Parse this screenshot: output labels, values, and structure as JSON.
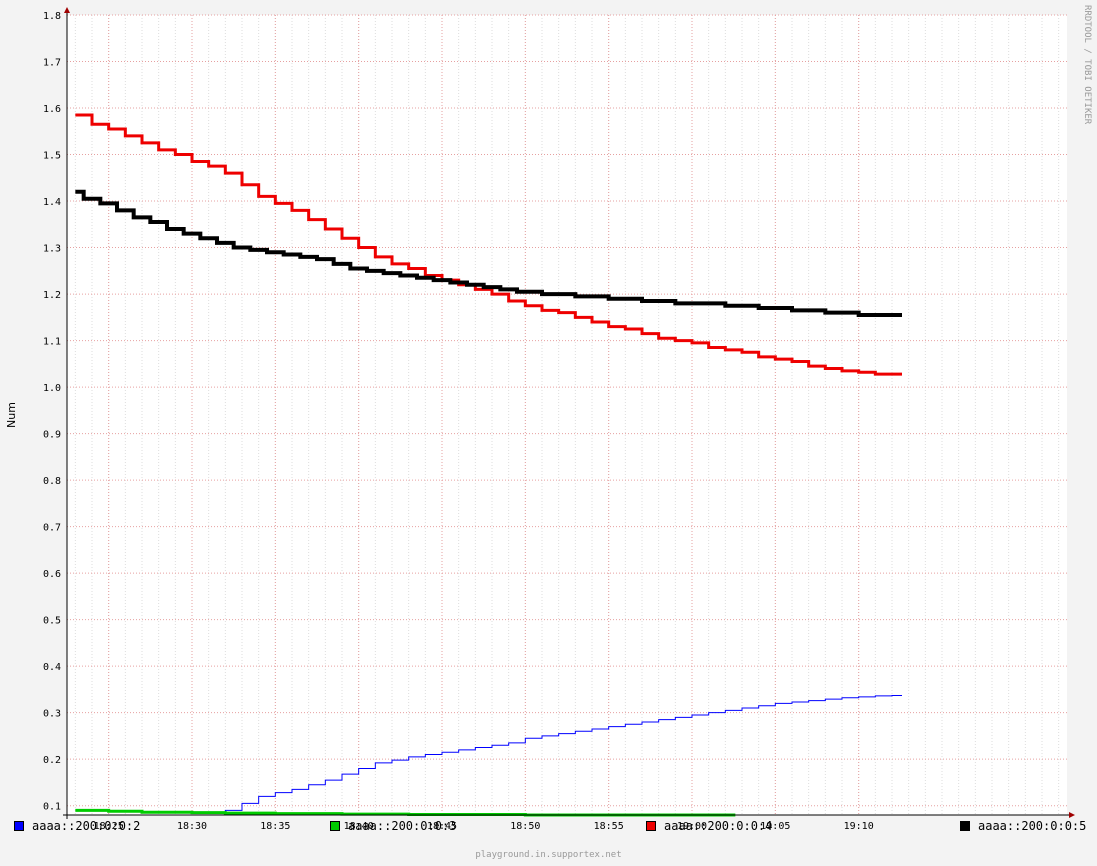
{
  "chart_data": {
    "type": "line",
    "title": "",
    "ylabel": "Num",
    "xlabel": "",
    "ylim": [
      0.08,
      1.8
    ],
    "y_ticks": [
      "0.1",
      "0.2",
      "0.3",
      "0.4",
      "0.5",
      "0.6",
      "0.7",
      "0.8",
      "0.9",
      "1.0",
      "1.1",
      "1.2",
      "1.3",
      "1.4",
      "1.5",
      "1.6",
      "1.7",
      "1.8"
    ],
    "x_ticks": [
      "18:25",
      "18:30",
      "18:35",
      "18:40",
      "18:45",
      "18:50",
      "18:55",
      "19:00",
      "19:05",
      "19:10"
    ],
    "grid": true,
    "series": [
      {
        "name": "aaaa::200:0:0:2",
        "color": "#0000ff",
        "values": [
          {
            "t": "18:23",
            "v": null
          },
          {
            "t": "18:31",
            "v": 0.085
          },
          {
            "t": "18:32",
            "v": 0.09
          },
          {
            "t": "18:33",
            "v": 0.105
          },
          {
            "t": "18:34",
            "v": 0.12
          },
          {
            "t": "18:35",
            "v": 0.128
          },
          {
            "t": "18:36",
            "v": 0.135
          },
          {
            "t": "18:37",
            "v": 0.145
          },
          {
            "t": "18:38",
            "v": 0.155
          },
          {
            "t": "18:39",
            "v": 0.168
          },
          {
            "t": "18:40",
            "v": 0.18
          },
          {
            "t": "18:41",
            "v": 0.192
          },
          {
            "t": "18:42",
            "v": 0.198
          },
          {
            "t": "18:43",
            "v": 0.205
          },
          {
            "t": "18:44",
            "v": 0.21
          },
          {
            "t": "18:45",
            "v": 0.215
          },
          {
            "t": "18:46",
            "v": 0.22
          },
          {
            "t": "18:47",
            "v": 0.225
          },
          {
            "t": "18:48",
            "v": 0.23
          },
          {
            "t": "18:49",
            "v": 0.235
          },
          {
            "t": "18:50",
            "v": 0.245
          },
          {
            "t": "18:51",
            "v": 0.25
          },
          {
            "t": "18:52",
            "v": 0.255
          },
          {
            "t": "18:53",
            "v": 0.26
          },
          {
            "t": "18:54",
            "v": 0.265
          },
          {
            "t": "18:55",
            "v": 0.27
          },
          {
            "t": "18:56",
            "v": 0.275
          },
          {
            "t": "18:57",
            "v": 0.28
          },
          {
            "t": "18:58",
            "v": 0.285
          },
          {
            "t": "18:59",
            "v": 0.29
          },
          {
            "t": "19:00",
            "v": 0.295
          },
          {
            "t": "19:01",
            "v": 0.3
          },
          {
            "t": "19:02",
            "v": 0.305
          },
          {
            "t": "19:03",
            "v": 0.31
          },
          {
            "t": "19:04",
            "v": 0.315
          },
          {
            "t": "19:05",
            "v": 0.32
          },
          {
            "t": "19:06",
            "v": 0.323
          },
          {
            "t": "19:07",
            "v": 0.326
          },
          {
            "t": "19:08",
            "v": 0.329
          },
          {
            "t": "19:09",
            "v": 0.332
          },
          {
            "t": "19:10",
            "v": 0.334
          },
          {
            "t": "19:11",
            "v": 0.336
          },
          {
            "t": "19:12",
            "v": 0.337
          }
        ]
      },
      {
        "name": "aaaa::200:0:0:3",
        "color": "#00cc00",
        "values": [
          {
            "t": "18:23",
            "v": 0.09
          },
          {
            "t": "18:25",
            "v": 0.088
          },
          {
            "t": "18:27",
            "v": 0.086
          },
          {
            "t": "18:30",
            "v": 0.085
          },
          {
            "t": "18:32",
            "v": 0.084
          },
          {
            "t": "18:35",
            "v": 0.083
          },
          {
            "t": "18:39",
            "v": 0.082
          },
          {
            "t": "18:43",
            "v": 0.081
          },
          {
            "t": "18:50",
            "v": 0.08
          },
          {
            "t": "18:55",
            "v": 0.08
          },
          {
            "t": "19:02",
            "v": 0.08
          }
        ]
      },
      {
        "name": "aaaa::200:0:0:4",
        "color": "#ee0000",
        "values": [
          {
            "t": "18:23",
            "v": 1.585
          },
          {
            "t": "18:24",
            "v": 1.565
          },
          {
            "t": "18:25",
            "v": 1.555
          },
          {
            "t": "18:26",
            "v": 1.54
          },
          {
            "t": "18:27",
            "v": 1.525
          },
          {
            "t": "18:28",
            "v": 1.51
          },
          {
            "t": "18:29",
            "v": 1.5
          },
          {
            "t": "18:30",
            "v": 1.485
          },
          {
            "t": "18:31",
            "v": 1.475
          },
          {
            "t": "18:32",
            "v": 1.46
          },
          {
            "t": "18:33",
            "v": 1.435
          },
          {
            "t": "18:34",
            "v": 1.41
          },
          {
            "t": "18:35",
            "v": 1.395
          },
          {
            "t": "18:36",
            "v": 1.38
          },
          {
            "t": "18:37",
            "v": 1.36
          },
          {
            "t": "18:38",
            "v": 1.34
          },
          {
            "t": "18:39",
            "v": 1.32
          },
          {
            "t": "18:40",
            "v": 1.3
          },
          {
            "t": "18:41",
            "v": 1.28
          },
          {
            "t": "18:42",
            "v": 1.265
          },
          {
            "t": "18:43",
            "v": 1.255
          },
          {
            "t": "18:44",
            "v": 1.24
          },
          {
            "t": "18:45",
            "v": 1.23
          },
          {
            "t": "18:46",
            "v": 1.22
          },
          {
            "t": "18:47",
            "v": 1.21
          },
          {
            "t": "18:48",
            "v": 1.2
          },
          {
            "t": "18:49",
            "v": 1.185
          },
          {
            "t": "18:50",
            "v": 1.175
          },
          {
            "t": "18:51",
            "v": 1.165
          },
          {
            "t": "18:52",
            "v": 1.16
          },
          {
            "t": "18:53",
            "v": 1.15
          },
          {
            "t": "18:54",
            "v": 1.14
          },
          {
            "t": "18:55",
            "v": 1.13
          },
          {
            "t": "18:56",
            "v": 1.125
          },
          {
            "t": "18:57",
            "v": 1.115
          },
          {
            "t": "18:58",
            "v": 1.105
          },
          {
            "t": "18:59",
            "v": 1.1
          },
          {
            "t": "19:00",
            "v": 1.095
          },
          {
            "t": "19:01",
            "v": 1.085
          },
          {
            "t": "19:02",
            "v": 1.08
          },
          {
            "t": "19:03",
            "v": 1.075
          },
          {
            "t": "19:04",
            "v": 1.065
          },
          {
            "t": "19:05",
            "v": 1.06
          },
          {
            "t": "19:06",
            "v": 1.055
          },
          {
            "t": "19:07",
            "v": 1.045
          },
          {
            "t": "19:08",
            "v": 1.04
          },
          {
            "t": "19:09",
            "v": 1.035
          },
          {
            "t": "19:10",
            "v": 1.032
          },
          {
            "t": "19:11",
            "v": 1.028
          },
          {
            "t": "19:12",
            "v": 1.028
          }
        ]
      },
      {
        "name": "aaaa::200:0:0:5",
        "color": "#000000",
        "values": [
          {
            "t": "18:23",
            "v": 1.42
          },
          {
            "t": "18:23.5",
            "v": 1.405
          },
          {
            "t": "18:24.5",
            "v": 1.395
          },
          {
            "t": "18:25.5",
            "v": 1.38
          },
          {
            "t": "18:26.5",
            "v": 1.365
          },
          {
            "t": "18:27.5",
            "v": 1.355
          },
          {
            "t": "18:28.5",
            "v": 1.34
          },
          {
            "t": "18:29.5",
            "v": 1.33
          },
          {
            "t": "18:30.5",
            "v": 1.32
          },
          {
            "t": "18:31.5",
            "v": 1.31
          },
          {
            "t": "18:32.5",
            "v": 1.3
          },
          {
            "t": "18:33.5",
            "v": 1.295
          },
          {
            "t": "18:34.5",
            "v": 1.29
          },
          {
            "t": "18:35.5",
            "v": 1.285
          },
          {
            "t": "18:36.5",
            "v": 1.28
          },
          {
            "t": "18:37.5",
            "v": 1.275
          },
          {
            "t": "18:38.5",
            "v": 1.265
          },
          {
            "t": "18:39.5",
            "v": 1.255
          },
          {
            "t": "18:40.5",
            "v": 1.25
          },
          {
            "t": "18:41.5",
            "v": 1.245
          },
          {
            "t": "18:42.5",
            "v": 1.24
          },
          {
            "t": "18:43.5",
            "v": 1.235
          },
          {
            "t": "18:44.5",
            "v": 1.23
          },
          {
            "t": "18:45.5",
            "v": 1.225
          },
          {
            "t": "18:46.5",
            "v": 1.22
          },
          {
            "t": "18:47.5",
            "v": 1.215
          },
          {
            "t": "18:48.5",
            "v": 1.21
          },
          {
            "t": "18:49.5",
            "v": 1.205
          },
          {
            "t": "18:51",
            "v": 1.2
          },
          {
            "t": "18:53",
            "v": 1.195
          },
          {
            "t": "18:55",
            "v": 1.19
          },
          {
            "t": "18:57",
            "v": 1.185
          },
          {
            "t": "18:59",
            "v": 1.18
          },
          {
            "t": "19:02",
            "v": 1.175
          },
          {
            "t": "19:04",
            "v": 1.17
          },
          {
            "t": "19:06",
            "v": 1.165
          },
          {
            "t": "19:08",
            "v": 1.16
          },
          {
            "t": "19:10",
            "v": 1.155
          },
          {
            "t": "19:12",
            "v": 1.155
          }
        ]
      }
    ]
  },
  "side_label": "RRDTOOL / TOBI OETIKER",
  "footer": "playground.in.supportex.net"
}
